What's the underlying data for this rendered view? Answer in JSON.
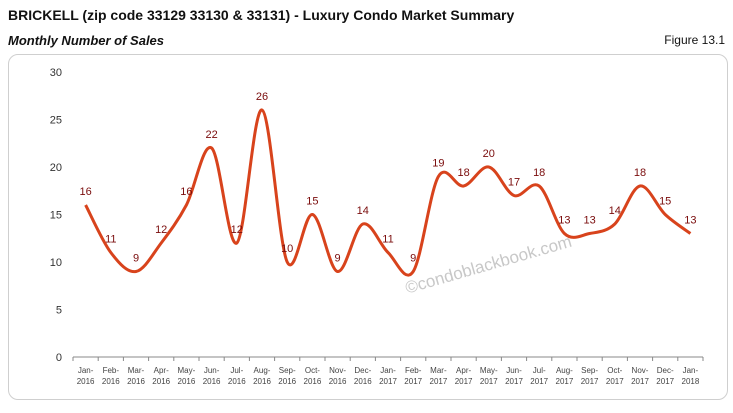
{
  "header": {
    "title": "BRICKELL (zip code 33129 33130 & 33131) - Luxury Condo Market Summary",
    "subtitle": "Monthly Number of Sales",
    "figure": "Figure 13.1"
  },
  "watermark": "©condoblackbook.com",
  "chart_data": {
    "type": "line",
    "smooth": true,
    "categories": [
      "Jan-2016",
      "Feb-2016",
      "Mar-2016",
      "Apr-2016",
      "May-2016",
      "Jun-2016",
      "Jul-2016",
      "Aug-2016",
      "Sep-2016",
      "Oct-2016",
      "Nov-2016",
      "Dec-2016",
      "Jan-2017",
      "Feb-2017",
      "Mar-2017",
      "Apr-2017",
      "May-2017",
      "Jun-2017",
      "Jul-2017",
      "Aug-2017",
      "Sep-2017",
      "Oct-2017",
      "Nov-2017",
      "Dec-2017",
      "Jan-2018"
    ],
    "values": [
      16,
      11,
      9,
      12,
      16,
      22,
      12,
      26,
      10,
      15,
      9,
      14,
      11,
      9,
      19,
      18,
      20,
      17,
      18,
      13,
      13,
      14,
      18,
      15,
      13
    ],
    "ylim": [
      0,
      30
    ],
    "yticks": [
      0,
      5,
      10,
      15,
      20,
      25,
      30
    ],
    "grid": false,
    "line_color": "#d8431c",
    "label_color": "#7a0c0c",
    "data_labels": true
  }
}
